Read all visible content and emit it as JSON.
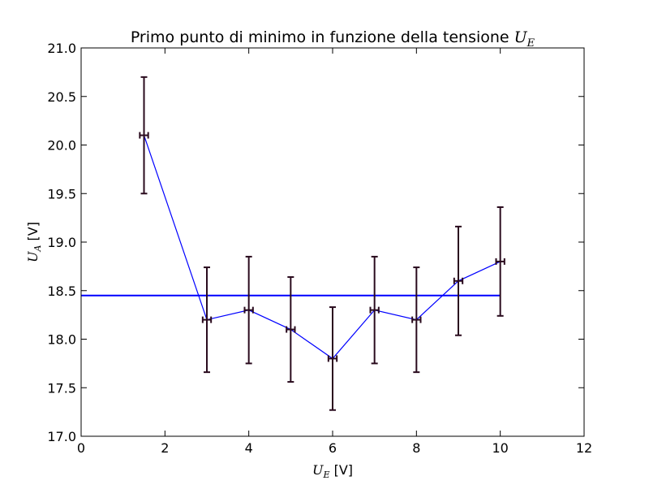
{
  "chart_data": {
    "type": "scatter",
    "title": {
      "text": "Primo punto di minimo in funzione della tensione ",
      "math_main": "U",
      "math_sub": "E"
    },
    "xlabel": {
      "math_main": "U",
      "math_sub": "E",
      "unit": " [V]"
    },
    "ylabel": {
      "math_main": "U",
      "math_sub": "A",
      "unit": " [V]"
    },
    "xlim": [
      0,
      12
    ],
    "ylim": [
      17.0,
      21.0
    ],
    "x_ticks": [
      "0",
      "2",
      "4",
      "6",
      "8",
      "10",
      "12"
    ],
    "y_ticks": [
      "17.0",
      "17.5",
      "18.0",
      "18.5",
      "19.0",
      "19.5",
      "20.0",
      "20.5",
      "21.0"
    ],
    "grid": false,
    "series": [
      {
        "x": [
          1.5,
          3,
          4,
          5,
          6,
          7,
          8,
          9,
          10
        ],
        "y": [
          20.1,
          18.2,
          18.3,
          18.1,
          17.8,
          18.3,
          18.2,
          18.6,
          18.8
        ],
        "y_err": [
          0.6,
          0.54,
          0.55,
          0.54,
          0.53,
          0.55,
          0.54,
          0.56,
          0.56
        ],
        "x_err": [
          0.1,
          0.1,
          0.1,
          0.1,
          0.1,
          0.1,
          0.1,
          0.1,
          0.1
        ],
        "line_color": "#0000ff",
        "errorbar_color": "#2a0b1e"
      }
    ],
    "reference_line": {
      "y": 18.45,
      "x_range": [
        0,
        10
      ],
      "color": "#0000ff"
    }
  }
}
